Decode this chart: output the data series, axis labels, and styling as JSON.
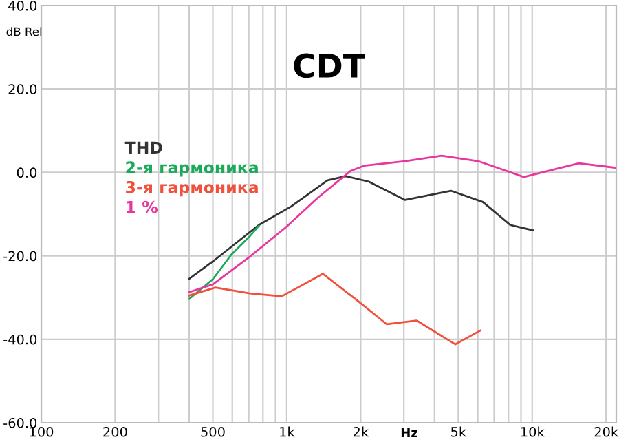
{
  "chart_data": {
    "type": "line",
    "title": "CDT",
    "xlabel": "Hz",
    "ylabel": "dB Rel",
    "log": "x",
    "grid": true,
    "legend": "left",
    "line_style": "solid",
    "marker": "none",
    "xlim": [
      100,
      22000
    ],
    "ylim": [
      -60,
      40
    ],
    "xticks": [
      {
        "value": 100,
        "label": "100"
      },
      {
        "value": 200,
        "label": "200"
      },
      {
        "value": 300,
        "label": null
      },
      {
        "value": 400,
        "label": null
      },
      {
        "value": 500,
        "label": "500"
      },
      {
        "value": 600,
        "label": null
      },
      {
        "value": 700,
        "label": null
      },
      {
        "value": 800,
        "label": null
      },
      {
        "value": 900,
        "label": null
      },
      {
        "value": 1000,
        "label": "1k"
      },
      {
        "value": 2000,
        "label": "2k"
      },
      {
        "value": 3000,
        "label": null
      },
      {
        "value": 4000,
        "label": null
      },
      {
        "value": 5000,
        "label": "5k"
      },
      {
        "value": 6000,
        "label": null
      },
      {
        "value": 7000,
        "label": null
      },
      {
        "value": 8000,
        "label": null
      },
      {
        "value": 9000,
        "label": null
      },
      {
        "value": 10000,
        "label": "10k"
      },
      {
        "value": 20000,
        "label": "20k"
      }
    ],
    "yticks": [
      {
        "value": -60,
        "label": "-60.0"
      },
      {
        "value": -40,
        "label": "-40.0"
      },
      {
        "value": -20,
        "label": "-20.0"
      },
      {
        "value": 0,
        "label": "0.0"
      },
      {
        "value": 20,
        "label": "20.0"
      },
      {
        "value": 40,
        "label": "40.0"
      }
    ],
    "series": [
      {
        "name": "THD",
        "color": "#333333",
        "x": [
          401,
          501,
          770,
          1040,
          1466,
          1738,
          2158,
          3035,
          4665,
          6295,
          8140,
          10090
        ],
        "values": [
          -25.5,
          -21.3,
          -12.6,
          -8.2,
          -1.9,
          -0.9,
          -2.2,
          -6.6,
          -4.4,
          -7.1,
          -12.6,
          -13.9
        ]
      },
      {
        "name": "2-я гармоника",
        "color": "#1aaa5a",
        "x": [
          401,
          500,
          595,
          707,
          770
        ],
        "values": [
          -30.3,
          -25.6,
          -19.7,
          -15.3,
          -12.8
        ]
      },
      {
        "name": "3-я гармоника",
        "color": "#f0503c",
        "x": [
          401,
          512,
          707,
          954,
          1403,
          1977,
          2557,
          3380,
          4864,
          6150
        ],
        "values": [
          -29.5,
          -27.6,
          -29.0,
          -29.7,
          -24.3,
          -31.1,
          -36.4,
          -35.5,
          -41.2,
          -37.9
        ]
      },
      {
        "name": "1 %",
        "color": "#e8369e",
        "x": [
          401,
          501,
          707,
          995,
          1343,
          1815,
          2065,
          3035,
          4276,
          6026,
          9250,
          15490,
          22000
        ],
        "values": [
          -28.7,
          -26.8,
          -20.2,
          -13.1,
          -6.0,
          0.3,
          1.6,
          2.7,
          4.0,
          2.7,
          -1.1,
          2.2,
          1.1
        ]
      }
    ]
  }
}
